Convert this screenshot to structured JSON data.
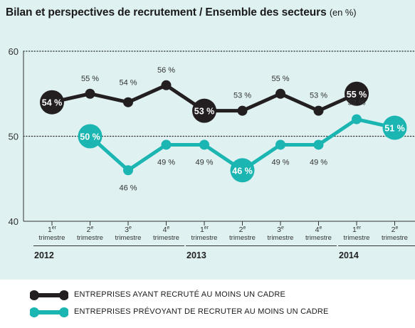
{
  "title": {
    "main": "Bilan et perspectives de recrutement / Ensemble des secteurs",
    "unit": "(en %)"
  },
  "colors": {
    "background": "#dff1f1",
    "series_black": "#231f20",
    "series_teal": "#1bb5b2",
    "grid": "#2b2b2b"
  },
  "chart_data": {
    "type": "line",
    "ylim": [
      40,
      60
    ],
    "yticks": [
      40,
      50,
      60
    ],
    "grid": "dotted horizontal at 50 and 60",
    "categories": [
      {
        "num": "1",
        "sup": "er",
        "word": "trimestre",
        "year": "2012"
      },
      {
        "num": "2",
        "sup": "e",
        "word": "trimestre",
        "year": ""
      },
      {
        "num": "3",
        "sup": "e",
        "word": "trimestre",
        "year": ""
      },
      {
        "num": "4",
        "sup": "e",
        "word": "trimestre",
        "year": ""
      },
      {
        "num": "1",
        "sup": "er",
        "word": "trimestre",
        "year": "2013"
      },
      {
        "num": "2",
        "sup": "e",
        "word": "trimestre",
        "year": ""
      },
      {
        "num": "3",
        "sup": "e",
        "word": "trimestre",
        "year": ""
      },
      {
        "num": "4",
        "sup": "e",
        "word": "trimestre",
        "year": ""
      },
      {
        "num": "1",
        "sup": "er",
        "word": "trimestre",
        "year": "2014"
      },
      {
        "num": "2",
        "sup": "e",
        "word": "trimestre",
        "year": ""
      }
    ],
    "series": [
      {
        "name": "ENTREPRISES AYANT RECRUTÉ AU MOINS UN CADRE",
        "color": "#231f20",
        "values": [
          54,
          55,
          54,
          56,
          53,
          53,
          55,
          53,
          55,
          null
        ],
        "labels": [
          "54 %",
          "55 %",
          "54 %",
          "56 %",
          "53 %",
          "53 %",
          "55 %",
          "53 %",
          "55 %",
          null
        ],
        "highlight": [
          true,
          false,
          false,
          false,
          true,
          false,
          false,
          false,
          true,
          false
        ]
      },
      {
        "name": "ENTREPRISES PRÉVOYANT DE RECRUTER AU MOINS UN CADRE",
        "color": "#1bb5b2",
        "values": [
          null,
          50,
          46,
          49,
          49,
          46,
          49,
          49,
          52,
          51
        ],
        "labels": [
          null,
          "50 %",
          "46 %",
          "49 %",
          "49 %",
          "46 %",
          "49 %",
          "49 %",
          "52 %",
          "51 %"
        ],
        "highlight": [
          false,
          true,
          false,
          false,
          false,
          true,
          false,
          false,
          false,
          true
        ]
      }
    ]
  }
}
